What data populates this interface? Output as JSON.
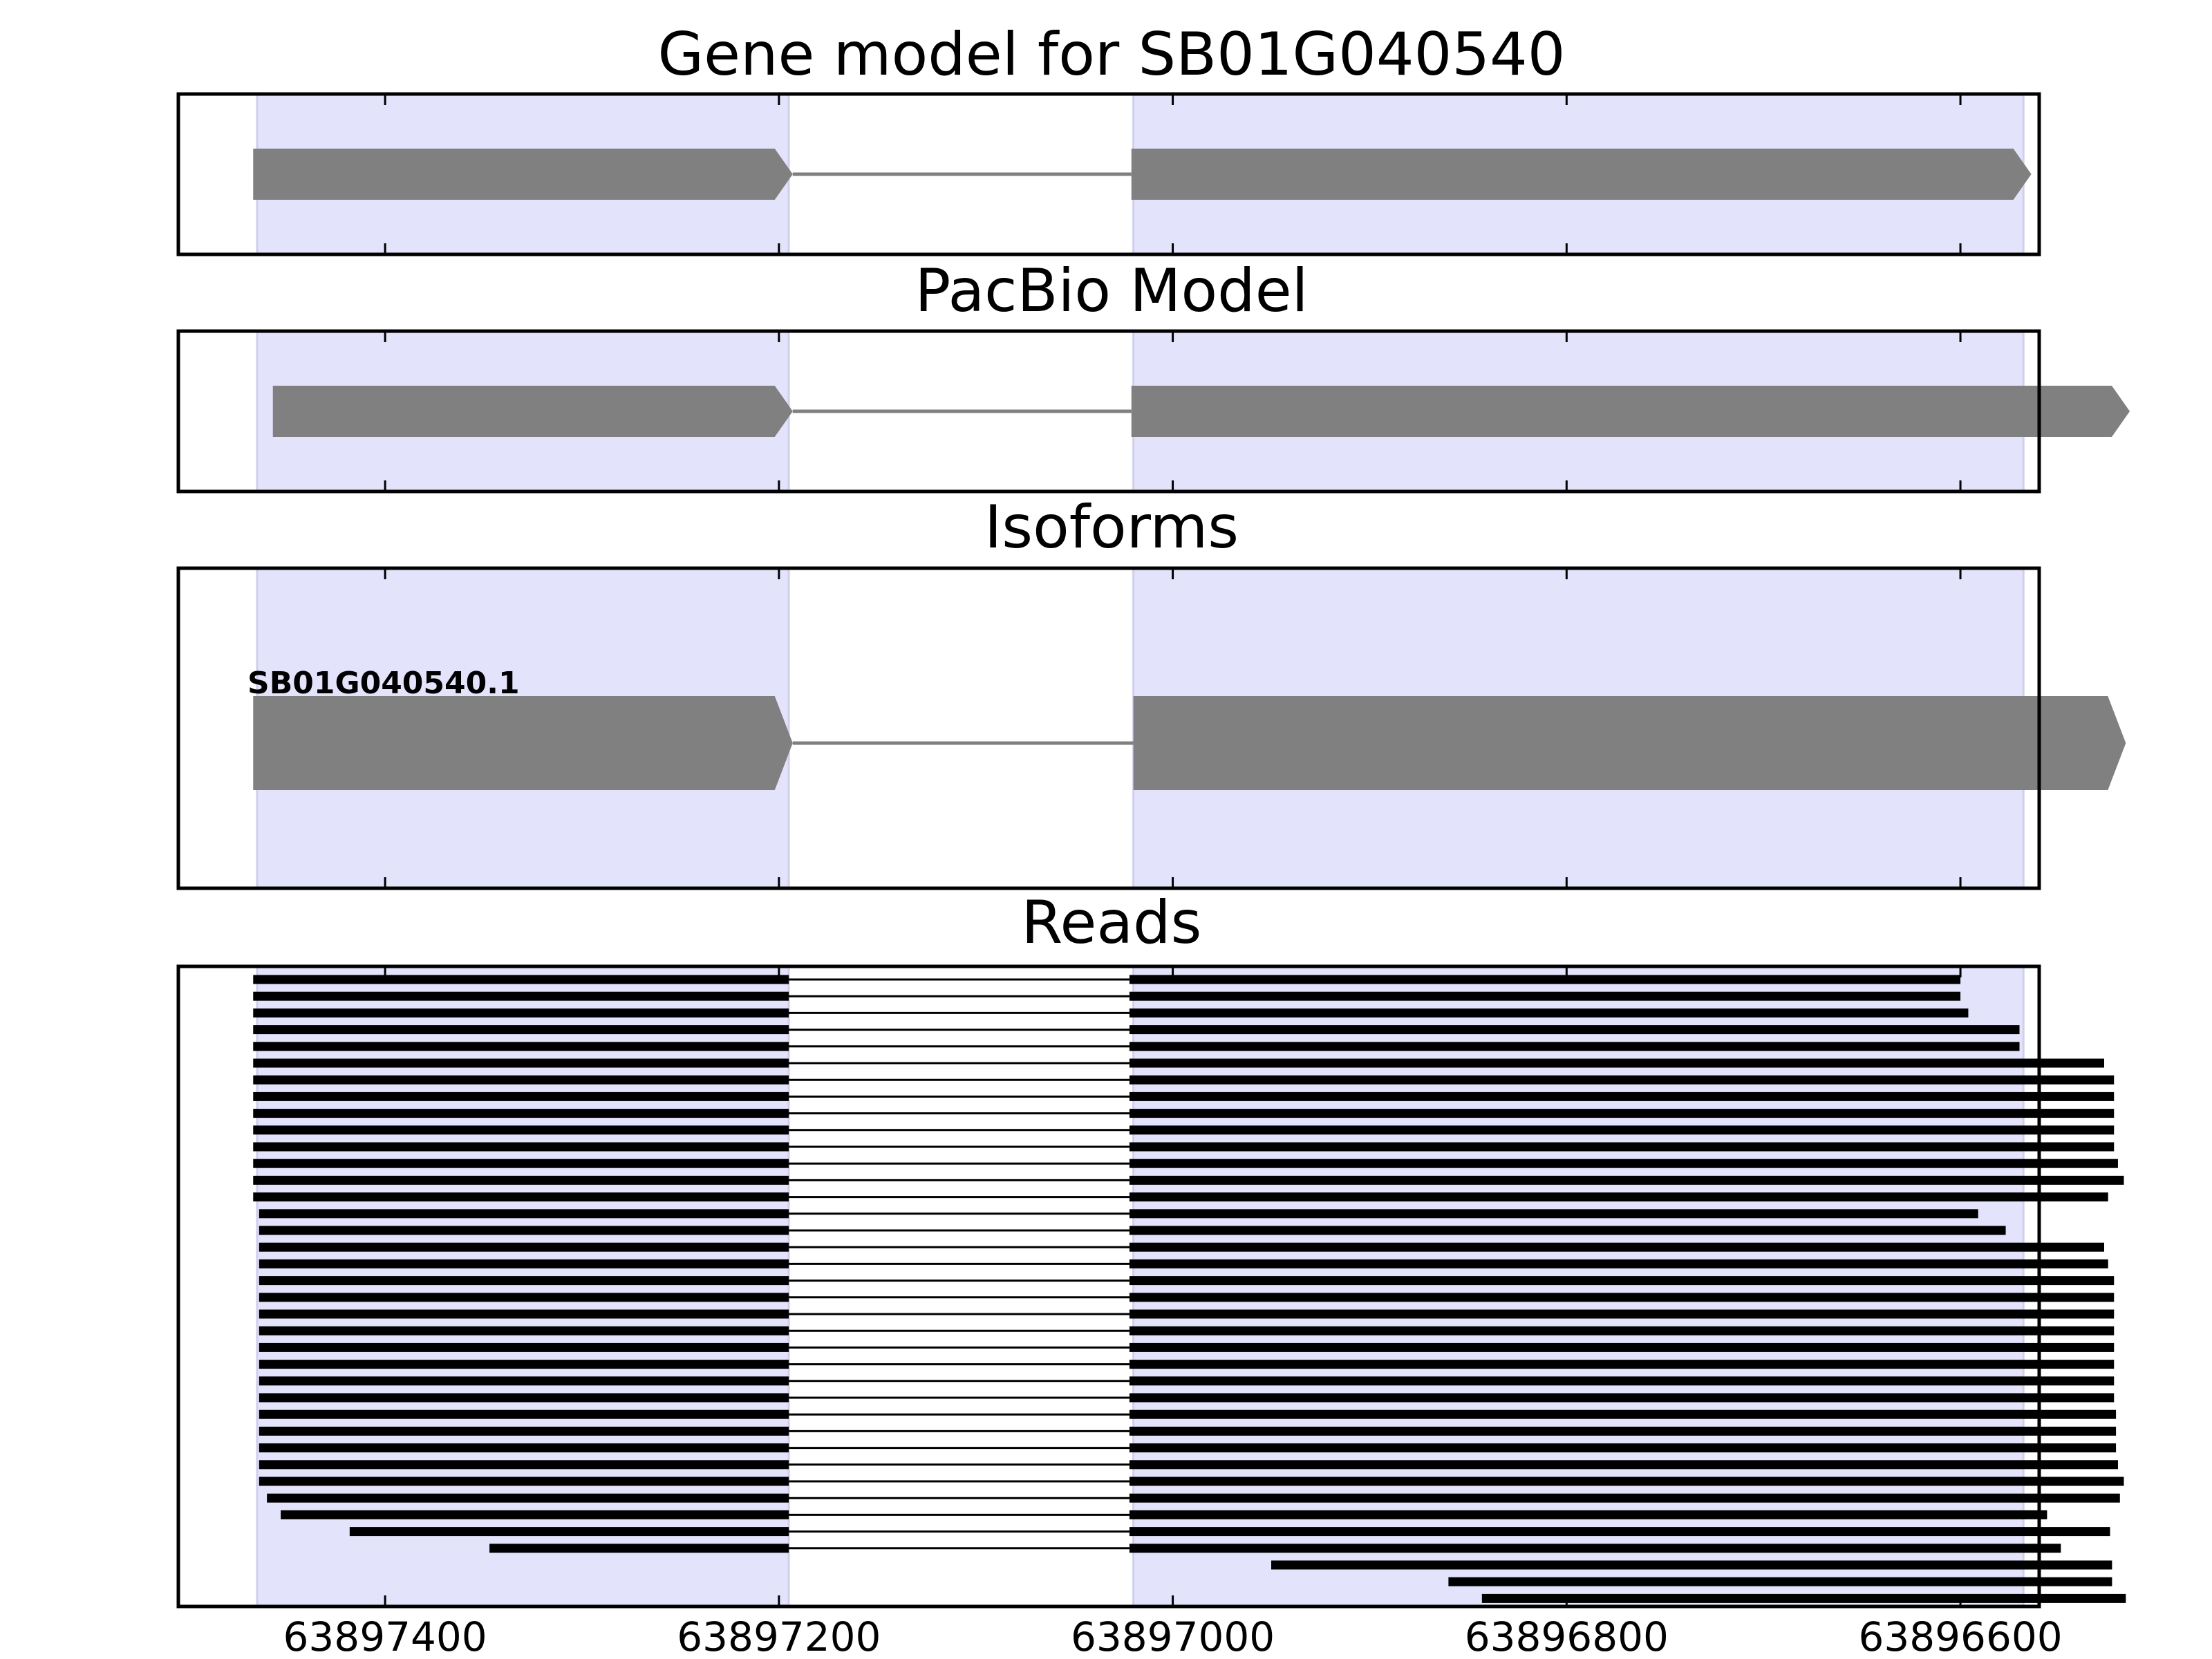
{
  "colors": {
    "highlight": "#e3e3fc",
    "exon": "#808080",
    "intron": "#808080",
    "read": "#000000",
    "frame": "#000000"
  },
  "chart_data": {
    "type": "gene-structure",
    "x_axis": {
      "reversed": true,
      "range": [
        63897505,
        63896560
      ],
      "ticks": [
        63897400,
        63897200,
        63897000,
        63896800,
        63896600
      ],
      "tick_labels": [
        "63897400",
        "63897200",
        "63897000",
        "63896800",
        "63896600"
      ]
    },
    "highlight_regions": [
      [
        63897465,
        63897195
      ],
      [
        63897020,
        63896568
      ]
    ],
    "panels": [
      {
        "title": "Gene model for SB01G040540",
        "strand": "-",
        "exons": [
          [
            63897467,
            63897193
          ],
          [
            63897021,
            63896564
          ]
        ],
        "isoform_label": ""
      },
      {
        "title": "PacBio Model",
        "strand": "-",
        "exons": [
          [
            63897457,
            63897193
          ],
          [
            63897021,
            63896514
          ]
        ],
        "isoform_label": ""
      },
      {
        "title": "Isoforms",
        "strand": "-",
        "exons": [
          [
            63897467,
            63897193
          ],
          [
            63897020,
            63896516
          ]
        ],
        "isoform_label": "SB01G040540.1"
      },
      {
        "title": "Reads",
        "reads": [
          {
            "start": 63897467,
            "intron": [
              63897195,
              63897022
            ],
            "end": 63896600
          },
          {
            "start": 63897467,
            "intron": [
              63897195,
              63897022
            ],
            "end": 63896600
          },
          {
            "start": 63897467,
            "intron": [
              63897195,
              63897022
            ],
            "end": 63896596
          },
          {
            "start": 63897467,
            "intron": [
              63897195,
              63897022
            ],
            "end": 63896570
          },
          {
            "start": 63897467,
            "intron": [
              63897195,
              63897022
            ],
            "end": 63896570
          },
          {
            "start": 63897467,
            "intron": [
              63897195,
              63897022
            ],
            "end": 63896527
          },
          {
            "start": 63897467,
            "intron": [
              63897195,
              63897022
            ],
            "end": 63896522
          },
          {
            "start": 63897467,
            "intron": [
              63897195,
              63897022
            ],
            "end": 63896522
          },
          {
            "start": 63897467,
            "intron": [
              63897195,
              63897022
            ],
            "end": 63896522
          },
          {
            "start": 63897467,
            "intron": [
              63897195,
              63897022
            ],
            "end": 63896522
          },
          {
            "start": 63897467,
            "intron": [
              63897195,
              63897022
            ],
            "end": 63896522
          },
          {
            "start": 63897467,
            "intron": [
              63897195,
              63897022
            ],
            "end": 63896520
          },
          {
            "start": 63897467,
            "intron": [
              63897195,
              63897022
            ],
            "end": 63896517
          },
          {
            "start": 63897467,
            "intron": [
              63897195,
              63897022
            ],
            "end": 63896525
          },
          {
            "start": 63897464,
            "intron": [
              63897195,
              63897022
            ],
            "end": 63896591
          },
          {
            "start": 63897464,
            "intron": [
              63897195,
              63897022
            ],
            "end": 63896577
          },
          {
            "start": 63897464,
            "intron": [
              63897195,
              63897022
            ],
            "end": 63896527
          },
          {
            "start": 63897464,
            "intron": [
              63897195,
              63897022
            ],
            "end": 63896525
          },
          {
            "start": 63897464,
            "intron": [
              63897195,
              63897022
            ],
            "end": 63896522
          },
          {
            "start": 63897464,
            "intron": [
              63897195,
              63897022
            ],
            "end": 63896522
          },
          {
            "start": 63897464,
            "intron": [
              63897195,
              63897022
            ],
            "end": 63896522
          },
          {
            "start": 63897464,
            "intron": [
              63897195,
              63897022
            ],
            "end": 63896522
          },
          {
            "start": 63897464,
            "intron": [
              63897195,
              63897022
            ],
            "end": 63896522
          },
          {
            "start": 63897464,
            "intron": [
              63897195,
              63897022
            ],
            "end": 63896522
          },
          {
            "start": 63897464,
            "intron": [
              63897195,
              63897022
            ],
            "end": 63896522
          },
          {
            "start": 63897464,
            "intron": [
              63897195,
              63897022
            ],
            "end": 63896522
          },
          {
            "start": 63897464,
            "intron": [
              63897195,
              63897022
            ],
            "end": 63896521
          },
          {
            "start": 63897464,
            "intron": [
              63897195,
              63897022
            ],
            "end": 63896521
          },
          {
            "start": 63897464,
            "intron": [
              63897195,
              63897022
            ],
            "end": 63896521
          },
          {
            "start": 63897464,
            "intron": [
              63897195,
              63897022
            ],
            "end": 63896520
          },
          {
            "start": 63897464,
            "intron": [
              63897195,
              63897022
            ],
            "end": 63896517
          },
          {
            "start": 63897460,
            "intron": [
              63897195,
              63897022
            ],
            "end": 63896519
          },
          {
            "start": 63897453,
            "intron": [
              63897195,
              63897022
            ],
            "end": 63896556
          },
          {
            "start": 63897418,
            "intron": [
              63897195,
              63897022
            ],
            "end": 63896524
          },
          {
            "start": 63897347,
            "intron": [
              63897195,
              63897022
            ],
            "end": 63896549
          },
          {
            "start": 63896950,
            "intron": null,
            "end": 63896523
          },
          {
            "start": 63896860,
            "intron": null,
            "end": 63896523
          },
          {
            "start": 63896843,
            "intron": null,
            "end": 63896516
          }
        ]
      }
    ]
  }
}
